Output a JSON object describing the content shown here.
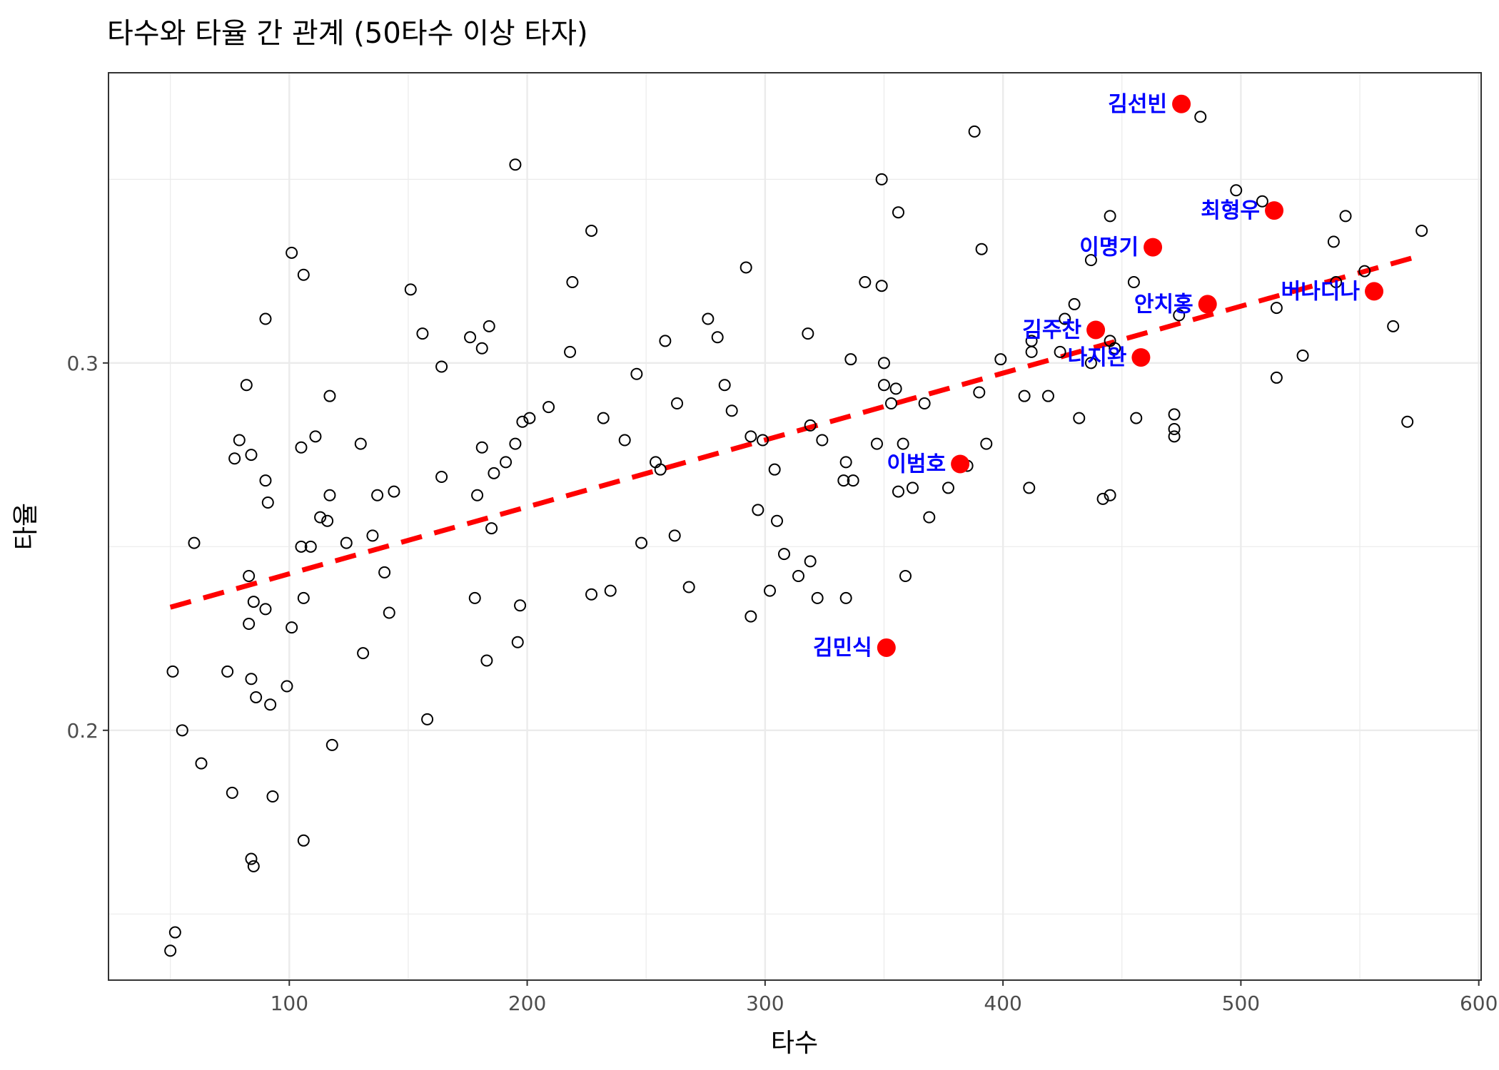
{
  "chart_data": {
    "type": "scatter",
    "title": "타수와 타율 간 관계 (50타수 이상 타자)",
    "xlabel": "타수",
    "ylabel": "타율",
    "xlim": [
      24,
      601
    ],
    "ylim": [
      0.132,
      0.379
    ],
    "x_ticks": [
      100,
      200,
      300,
      400,
      500,
      600
    ],
    "x_tick_labels": [
      "100",
      "200",
      "300",
      "400",
      "500",
      "600"
    ],
    "y_ticks": [
      0.2,
      0.3
    ],
    "y_tick_labels": [
      "0.2",
      "0.3"
    ],
    "grid": true,
    "colors": {
      "points": "#000000",
      "highlight": "#ff0000",
      "labels": "#0000ff",
      "trend": "#ff0000",
      "grid": "#ebebeb",
      "panel_border": "#333333"
    },
    "trend_line": {
      "style": "dashed",
      "x": [
        50,
        576
      ],
      "y": [
        0.2335,
        0.3293
      ]
    },
    "points": [
      [
        50,
        0.14
      ],
      [
        52,
        0.145
      ],
      [
        51,
        0.216
      ],
      [
        55,
        0.2
      ],
      [
        60,
        0.251
      ],
      [
        63,
        0.191
      ],
      [
        74,
        0.216
      ],
      [
        76,
        0.183
      ],
      [
        77,
        0.274
      ],
      [
        79,
        0.279
      ],
      [
        82,
        0.294
      ],
      [
        83,
        0.242
      ],
      [
        83,
        0.229
      ],
      [
        84,
        0.275
      ],
      [
        84,
        0.165
      ],
      [
        84,
        0.214
      ],
      [
        85,
        0.235
      ],
      [
        85,
        0.163
      ],
      [
        86,
        0.209
      ],
      [
        90,
        0.268
      ],
      [
        90,
        0.312
      ],
      [
        90,
        0.233
      ],
      [
        91,
        0.262
      ],
      [
        92,
        0.207
      ],
      [
        93,
        0.182
      ],
      [
        99,
        0.212
      ],
      [
        101,
        0.228
      ],
      [
        101,
        0.33
      ],
      [
        105,
        0.277
      ],
      [
        105,
        0.25
      ],
      [
        106,
        0.324
      ],
      [
        106,
        0.236
      ],
      [
        106,
        0.17
      ],
      [
        109,
        0.25
      ],
      [
        111,
        0.28
      ],
      [
        113,
        0.258
      ],
      [
        116,
        0.257
      ],
      [
        117,
        0.291
      ],
      [
        117,
        0.264
      ],
      [
        118,
        0.196
      ],
      [
        124,
        0.251
      ],
      [
        130,
        0.278
      ],
      [
        131,
        0.221
      ],
      [
        135,
        0.253
      ],
      [
        137,
        0.264
      ],
      [
        140,
        0.243
      ],
      [
        142,
        0.232
      ],
      [
        144,
        0.265
      ],
      [
        151,
        0.32
      ],
      [
        156,
        0.308
      ],
      [
        158,
        0.203
      ],
      [
        164,
        0.269
      ],
      [
        164,
        0.299
      ],
      [
        176,
        0.307
      ],
      [
        178,
        0.236
      ],
      [
        179,
        0.264
      ],
      [
        181,
        0.277
      ],
      [
        181,
        0.304
      ],
      [
        183,
        0.219
      ],
      [
        184,
        0.31
      ],
      [
        185,
        0.255
      ],
      [
        186,
        0.27
      ],
      [
        191,
        0.273
      ],
      [
        195,
        0.278
      ],
      [
        195,
        0.354
      ],
      [
        196,
        0.224
      ],
      [
        197,
        0.234
      ],
      [
        198,
        0.284
      ],
      [
        201,
        0.285
      ],
      [
        209,
        0.288
      ],
      [
        218,
        0.303
      ],
      [
        219,
        0.322
      ],
      [
        227,
        0.237
      ],
      [
        227,
        0.336
      ],
      [
        232,
        0.285
      ],
      [
        235,
        0.238
      ],
      [
        241,
        0.279
      ],
      [
        246,
        0.297
      ],
      [
        248,
        0.251
      ],
      [
        254,
        0.273
      ],
      [
        256,
        0.271
      ],
      [
        258,
        0.306
      ],
      [
        262,
        0.253
      ],
      [
        263,
        0.289
      ],
      [
        268,
        0.239
      ],
      [
        276,
        0.312
      ],
      [
        280,
        0.307
      ],
      [
        283,
        0.294
      ],
      [
        286,
        0.287
      ],
      [
        292,
        0.326
      ],
      [
        294,
        0.231
      ],
      [
        294,
        0.28
      ],
      [
        297,
        0.26
      ],
      [
        299,
        0.279
      ],
      [
        302,
        0.238
      ],
      [
        304,
        0.271
      ],
      [
        305,
        0.257
      ],
      [
        308,
        0.248
      ],
      [
        314,
        0.242
      ],
      [
        318,
        0.308
      ],
      [
        319,
        0.246
      ],
      [
        319,
        0.283
      ],
      [
        322,
        0.236
      ],
      [
        324,
        0.279
      ],
      [
        333,
        0.268
      ],
      [
        334,
        0.236
      ],
      [
        334,
        0.273
      ],
      [
        336,
        0.301
      ],
      [
        337,
        0.268
      ],
      [
        342,
        0.322
      ],
      [
        347,
        0.278
      ],
      [
        349,
        0.35
      ],
      [
        349,
        0.321
      ],
      [
        350,
        0.3
      ],
      [
        350,
        0.294
      ],
      [
        353,
        0.289
      ],
      [
        355,
        0.293
      ],
      [
        356,
        0.265
      ],
      [
        356,
        0.341
      ],
      [
        358,
        0.278
      ],
      [
        359,
        0.242
      ],
      [
        362,
        0.266
      ],
      [
        367,
        0.289
      ],
      [
        369,
        0.258
      ],
      [
        377,
        0.266
      ],
      [
        385,
        0.272
      ],
      [
        388,
        0.363
      ],
      [
        390,
        0.292
      ],
      [
        391,
        0.331
      ],
      [
        393,
        0.278
      ],
      [
        399,
        0.301
      ],
      [
        409,
        0.291
      ],
      [
        411,
        0.266
      ],
      [
        412,
        0.306
      ],
      [
        412,
        0.303
      ],
      [
        419,
        0.291
      ],
      [
        424,
        0.303
      ],
      [
        426,
        0.312
      ],
      [
        430,
        0.316
      ],
      [
        432,
        0.285
      ],
      [
        437,
        0.328
      ],
      [
        437,
        0.3
      ],
      [
        442,
        0.263
      ],
      [
        445,
        0.264
      ],
      [
        445,
        0.34
      ],
      [
        445,
        0.306
      ],
      [
        447,
        0.304
      ],
      [
        455,
        0.322
      ],
      [
        456,
        0.285
      ],
      [
        472,
        0.286
      ],
      [
        472,
        0.282
      ],
      [
        472,
        0.28
      ],
      [
        474,
        0.313
      ],
      [
        483,
        0.367
      ],
      [
        498,
        0.347
      ],
      [
        509,
        0.344
      ],
      [
        515,
        0.296
      ],
      [
        515,
        0.315
      ],
      [
        526,
        0.302
      ],
      [
        539,
        0.333
      ],
      [
        540,
        0.322
      ],
      [
        544,
        0.34
      ],
      [
        552,
        0.325
      ],
      [
        564,
        0.31
      ],
      [
        570,
        0.284
      ],
      [
        576,
        0.336
      ]
    ],
    "highlights": [
      {
        "name": "김선빈",
        "x": 475,
        "y": 0.3705
      },
      {
        "name": "최형우",
        "x": 514,
        "y": 0.3415
      },
      {
        "name": "이명기",
        "x": 463,
        "y": 0.3315
      },
      {
        "name": "버나디나",
        "x": 556,
        "y": 0.3195
      },
      {
        "name": "안치홍",
        "x": 486,
        "y": 0.316
      },
      {
        "name": "김주찬",
        "x": 439,
        "y": 0.309
      },
      {
        "name": "나지완",
        "x": 458,
        "y": 0.3015
      },
      {
        "name": "이범호",
        "x": 382,
        "y": 0.2725
      },
      {
        "name": "김민식",
        "x": 351,
        "y": 0.2225
      }
    ]
  }
}
